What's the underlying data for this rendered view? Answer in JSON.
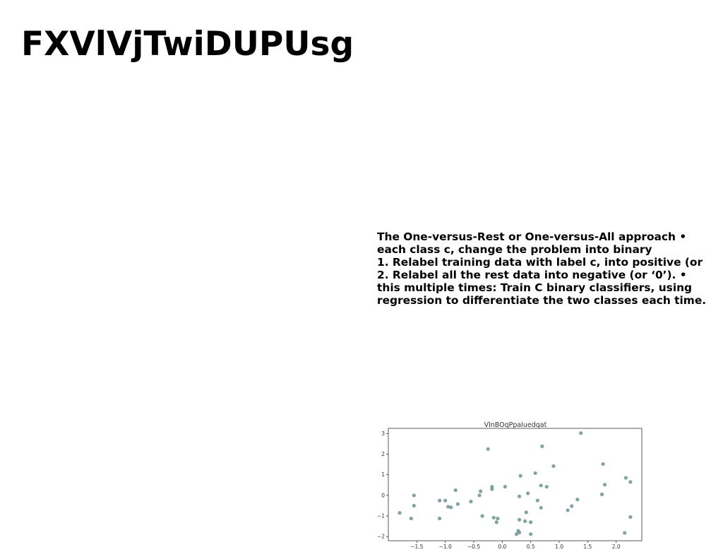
{
  "slide": {
    "title": "FXVlVjTwiDUPUsg",
    "body_lines": [
      "The One-versus-Rest or One-versus-All approach •",
      "each class c, change the problem into binary",
      "1. Relabel training data with label c, into positive (or",
      "2. Relabel all the rest data into negative (or ‘0’). •",
      "this multiple times: Train C binary classifiers, using",
      "regression to differentiate the two classes each time."
    ]
  },
  "colors": {
    "point": "#6f9294",
    "text": "#000000",
    "axis": "#333333"
  },
  "chart_data": {
    "type": "scatter",
    "title": "VlnBOqPpaluedqat",
    "xlabel": "",
    "ylabel": "",
    "xlim": [
      -2.0,
      2.45
    ],
    "ylim": [
      -2.2,
      3.25
    ],
    "x_ticks": [
      -1.5,
      -1.0,
      -0.5,
      0.0,
      0.5,
      1.0,
      1.5,
      2.0
    ],
    "x_tick_labels": [
      "−1.5",
      "−1.0",
      "−0.5",
      "0.0",
      "0.5",
      "1.0",
      "1.5",
      "2.0"
    ],
    "y_ticks": [
      -2,
      -1,
      0,
      1,
      2,
      3
    ],
    "y_tick_labels": [
      "−2",
      "−1",
      "0",
      "1",
      "2",
      "3"
    ],
    "grid": false,
    "legend": "none",
    "points": [
      [
        -1.8,
        -0.85
      ],
      [
        -1.6,
        -1.12
      ],
      [
        -1.55,
        0.0
      ],
      [
        -1.55,
        -0.5
      ],
      [
        -1.1,
        -0.25
      ],
      [
        -1.1,
        -1.12
      ],
      [
        -1.0,
        -0.25
      ],
      [
        -0.95,
        -0.55
      ],
      [
        -0.9,
        -0.58
      ],
      [
        -0.82,
        0.25
      ],
      [
        -0.78,
        -0.42
      ],
      [
        -0.55,
        -0.3
      ],
      [
        -0.4,
        0.0
      ],
      [
        -0.38,
        0.2
      ],
      [
        -0.35,
        -1.0
      ],
      [
        -0.25,
        2.25
      ],
      [
        -0.18,
        0.42
      ],
      [
        -0.18,
        0.3
      ],
      [
        -0.15,
        -1.08
      ],
      [
        -0.1,
        -1.3
      ],
      [
        -0.08,
        -1.12
      ],
      [
        0.05,
        0.42
      ],
      [
        0.25,
        -1.88
      ],
      [
        0.28,
        -1.72
      ],
      [
        0.3,
        -1.8
      ],
      [
        0.3,
        -0.05
      ],
      [
        0.3,
        -1.18
      ],
      [
        0.32,
        0.95
      ],
      [
        0.4,
        -1.25
      ],
      [
        0.42,
        -0.82
      ],
      [
        0.45,
        0.1
      ],
      [
        0.5,
        -1.88
      ],
      [
        0.5,
        -1.3
      ],
      [
        0.58,
        1.08
      ],
      [
        0.62,
        -0.25
      ],
      [
        0.68,
        0.48
      ],
      [
        0.68,
        -0.6
      ],
      [
        0.7,
        2.38
      ],
      [
        0.78,
        0.42
      ],
      [
        0.9,
        1.42
      ],
      [
        1.15,
        -0.72
      ],
      [
        1.22,
        -0.52
      ],
      [
        1.32,
        -0.2
      ],
      [
        1.38,
        3.02
      ],
      [
        1.75,
        0.05
      ],
      [
        1.77,
        1.52
      ],
      [
        1.8,
        0.52
      ],
      [
        2.15,
        -1.82
      ],
      [
        2.17,
        0.85
      ],
      [
        2.25,
        0.65
      ],
      [
        2.25,
        -1.05
      ]
    ]
  }
}
